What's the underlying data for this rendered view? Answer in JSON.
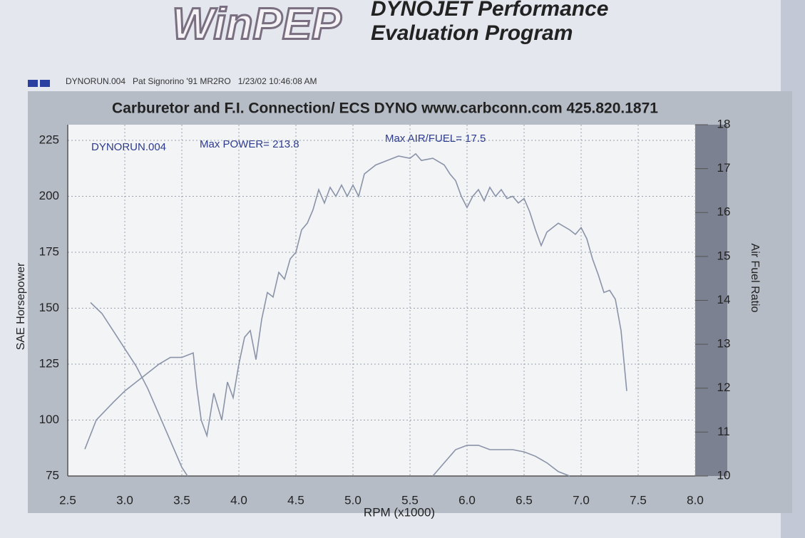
{
  "header": {
    "logo": "WinPEP",
    "title_line1": "DYNOJET Performance",
    "title_line2": "Evaluation Program",
    "run_info": "DYNORUN.004   Pat Signorino '91 MR2RO   1/23/02 10:46:08 AM"
  },
  "chart_data": {
    "type": "line",
    "title": "Carburetor and F.I. Connection/ ECS DYNO www.carbconn.com 425.820.1871",
    "annotations": [
      "DYNORUN.004",
      "Max POWER= 213.8",
      "Max AIR/FUEL= 17.5"
    ],
    "xlabel": "RPM (x1000)",
    "ylabel": "SAE Horsepower",
    "y2label": "Air Fuel Ratio",
    "xlim": [
      2.5,
      8.0
    ],
    "xticks": [
      2.5,
      {
        "value": 3,
        "label": "3.0"
      },
      3.5,
      {
        "value": 4,
        "label": "4.0"
      },
      4.5,
      {
        "value": 5,
        "label": "5.0"
      },
      5.5,
      {
        "value": 6,
        "label": "6.0"
      },
      6.5,
      {
        "value": 7,
        "label": "7.0"
      },
      7.5,
      {
        "value": 8,
        "label": "8.0"
      }
    ],
    "ylim": [
      75,
      232
    ],
    "yticks": [
      75,
      100,
      125,
      150,
      175,
      200,
      225
    ],
    "y2lim": [
      10,
      18
    ],
    "y2ticks": [
      10,
      11,
      12,
      13,
      14,
      15,
      16,
      17,
      18
    ],
    "grid": true,
    "series": [
      {
        "color": "#8a93a8",
        "x": [
          2.65,
          2.75,
          2.9,
          3.0,
          3.1,
          3.2,
          3.3,
          3.4,
          3.5,
          3.6,
          3.63,
          3.67,
          3.72,
          3.78,
          3.85,
          3.9,
          3.95,
          4.0,
          4.05,
          4.1,
          4.15,
          4.2,
          4.25,
          4.3,
          4.35,
          4.4,
          4.45,
          4.5,
          4.55,
          4.6,
          4.65,
          4.7,
          4.75,
          4.8,
          4.85,
          4.9,
          4.95,
          5.0,
          5.05,
          5.1,
          5.2,
          5.3,
          5.4,
          5.5,
          5.55,
          5.6,
          5.7,
          5.8,
          5.85,
          5.9,
          5.95,
          6.0,
          6.05,
          6.1,
          6.15,
          6.2,
          6.25,
          6.3,
          6.35,
          6.4,
          6.45,
          6.5,
          6.55,
          6.6,
          6.65,
          6.7,
          6.8,
          6.9,
          6.95,
          7.0,
          7.05,
          7.1,
          7.15,
          7.2,
          7.25,
          7.3,
          7.35,
          7.4
        ],
        "values": [
          87,
          100,
          108,
          113,
          117,
          121,
          125,
          128,
          128,
          130,
          115,
          100,
          93,
          112,
          100,
          117,
          110,
          125,
          137,
          140,
          127,
          145,
          157,
          155,
          166,
          163,
          172,
          175,
          185,
          188,
          194,
          203,
          197,
          204,
          200,
          205,
          200,
          205,
          200,
          210,
          214,
          216,
          218,
          217,
          219,
          216,
          217,
          214,
          210,
          207,
          200,
          195,
          200,
          203,
          198,
          204,
          200,
          203,
          199,
          200,
          197,
          199,
          193,
          185,
          178,
          184,
          188,
          185,
          183,
          186,
          181,
          172,
          165,
          157,
          158,
          154,
          140,
          113
        ]
      },
      {
        "color": "#8a93a8",
        "axis": "y2",
        "x": [
          2.7,
          2.8,
          2.9,
          3.0,
          3.1,
          3.2,
          3.3,
          3.4,
          3.5,
          3.55,
          4.6,
          5.7,
          5.8,
          5.9,
          6.0,
          6.1,
          6.2,
          6.3,
          6.4,
          6.5,
          6.6,
          6.7,
          6.8,
          6.9
        ],
        "values": [
          13.95,
          13.7,
          13.3,
          12.9,
          12.5,
          12.0,
          11.4,
          10.8,
          10.2,
          10.0,
          null,
          10.0,
          10.3,
          10.6,
          10.7,
          10.7,
          10.6,
          10.6,
          10.6,
          10.55,
          10.45,
          10.3,
          10.1,
          10.0
        ]
      }
    ]
  }
}
